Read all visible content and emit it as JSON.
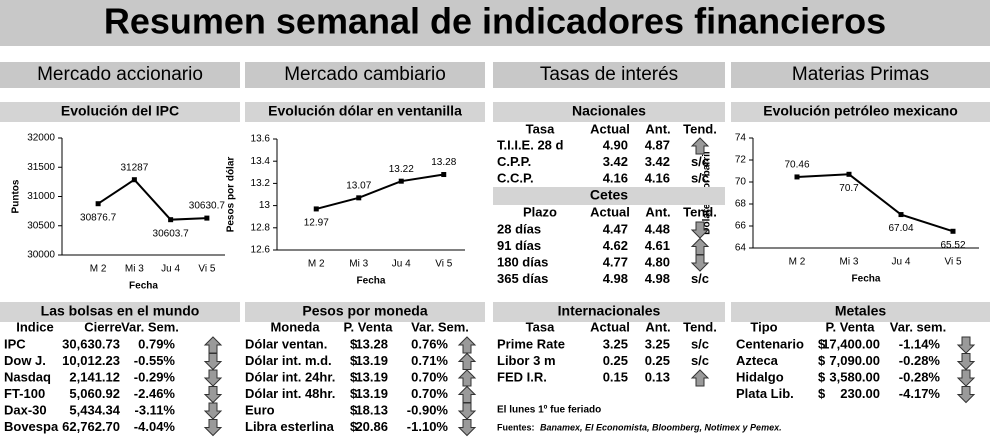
{
  "title": "Resumen semanal de indicadores financieros",
  "sections": [
    "Mercado accionario",
    "Mercado cambiario",
    "Tasas de interés",
    "Materias Primas"
  ],
  "chart_data": [
    {
      "type": "line",
      "title": "Evolución del IPC",
      "x_label": "Fecha",
      "y_label": "Puntos",
      "categories": [
        "M 2",
        "Mi 3",
        "Ju 4",
        "Vi 5"
      ],
      "values": [
        30876.7,
        31287,
        30603.7,
        30630.7
      ],
      "ylim": [
        30000,
        32000
      ],
      "yticks": [
        30000,
        30500,
        31000,
        31500,
        32000
      ],
      "color": "#000000"
    },
    {
      "type": "line",
      "title": "Evolución dólar en ventanilla",
      "x_label": "Fecha",
      "y_label": "Pesos por dólar",
      "categories": [
        "M 2",
        "Mi 3",
        "Ju 4",
        "Vi 5"
      ],
      "values": [
        12.97,
        13.07,
        13.22,
        13.28
      ],
      "ylim": [
        12.6,
        13.6
      ],
      "yticks": [
        12.6,
        12.8,
        13,
        13.2,
        13.4,
        13.6
      ],
      "color": "#000000"
    },
    {
      "type": "line",
      "title": "Evolución petróleo mexicano",
      "x_label": "Fecha",
      "y_label": "Dólares por barril",
      "categories": [
        "M 2",
        "Mi 3",
        "Ju 4",
        "Vi 5"
      ],
      "values": [
        70.46,
        70.7,
        67.04,
        65.52
      ],
      "ylim": [
        64,
        74
      ],
      "yticks": [
        64,
        66,
        68,
        70,
        72,
        74
      ],
      "color": "#000000"
    }
  ],
  "tables": [
    {
      "title": "Nacionales",
      "header": [
        "Tasa",
        "Actual",
        "Ant.",
        "Tend."
      ],
      "rows": [
        [
          "T.I.I.E. 28 d",
          "4.90",
          "4.87"
        ],
        [
          "C.P.P.",
          "3.42",
          "3.42"
        ],
        [
          "C.C.P.",
          "4.16",
          "4.16"
        ]
      ],
      "trends": [
        "up",
        "s/c",
        "s/c"
      ]
    },
    {
      "title": "Cetes",
      "header": [
        "Plazo",
        "Actual",
        "Ant.",
        "Tend."
      ],
      "rows": [
        [
          "28 días",
          "4.47",
          "4.48"
        ],
        [
          "91 días",
          "4.62",
          "4.61"
        ],
        [
          "180 días",
          "4.77",
          "4.80"
        ],
        [
          "365 días",
          "4.98",
          "4.98"
        ]
      ],
      "trends": [
        "down",
        "up",
        "down",
        "s/c"
      ]
    },
    {
      "title": "Las bolsas en el mundo",
      "header": [
        "Indice",
        "Cierre",
        "Var. Sem."
      ],
      "rows": [
        [
          "IPC",
          "30,630.73",
          "0.79%"
        ],
        [
          "Dow J.",
          "10,012.23",
          "-0.55%"
        ],
        [
          "Nasdaq",
          "2,141.12",
          "-0.29%"
        ],
        [
          "FT-100",
          "5,060.92",
          "-2.46%"
        ],
        [
          "Dax-30",
          "5,434.34",
          "-3.11%"
        ],
        [
          "Bovespa",
          "62,762.70",
          "-4.04%"
        ]
      ],
      "trends": [
        "up",
        "down",
        "down",
        "down",
        "down",
        "down"
      ]
    },
    {
      "title": "Pesos por moneda",
      "header": [
        "Moneda",
        "P. Venta",
        "Var. Sem."
      ],
      "rows": [
        [
          "Dólar ventan.",
          "$",
          "13.28",
          "0.76%"
        ],
        [
          "Dólar int. m.d.",
          "$",
          "13.19",
          "0.71%"
        ],
        [
          "Dólar int. 24hr.",
          "$",
          "13.19",
          "0.70%"
        ],
        [
          "Dólar int. 48hr.",
          "$",
          "13.19",
          "0.70%"
        ],
        [
          "Euro",
          "$",
          "18.13",
          "-0.90%"
        ],
        [
          "Libra esterlina",
          "$",
          "20.86",
          "-1.10%"
        ]
      ],
      "trends": [
        "up",
        "up",
        "up",
        "up",
        "down",
        "down"
      ]
    },
    {
      "title": "Internacionales",
      "header": [
        "Tasa",
        "Actual",
        "Ant.",
        "Tend."
      ],
      "rows": [
        [
          "Prime Rate",
          "3.25",
          "3.25"
        ],
        [
          "Libor 3 m",
          "0.25",
          "0.25"
        ],
        [
          "FED I.R.",
          "0.15",
          "0.13"
        ]
      ],
      "trends": [
        "s/c",
        "s/c",
        "up"
      ]
    },
    {
      "title": "Metales",
      "header": [
        "Tipo",
        "P. Venta",
        "Var. sem."
      ],
      "rows": [
        [
          "Centenario",
          "$",
          "17,400.00",
          "-1.14%"
        ],
        [
          "Azteca",
          "$",
          "7,090.00",
          "-0.28%"
        ],
        [
          "Hidalgo",
          "$",
          "3,580.00",
          "-0.28%"
        ],
        [
          "Plata Lib.",
          "$",
          "230.00",
          "-4.17%"
        ]
      ],
      "trends": [
        "down",
        "down",
        "down",
        "down"
      ]
    }
  ],
  "note": "El lunes 1º fue feriado",
  "sources": {
    "label": "Fuentes:",
    "text": "Banamex, El Economista, Bloomberg, Notimex y Pemex."
  }
}
